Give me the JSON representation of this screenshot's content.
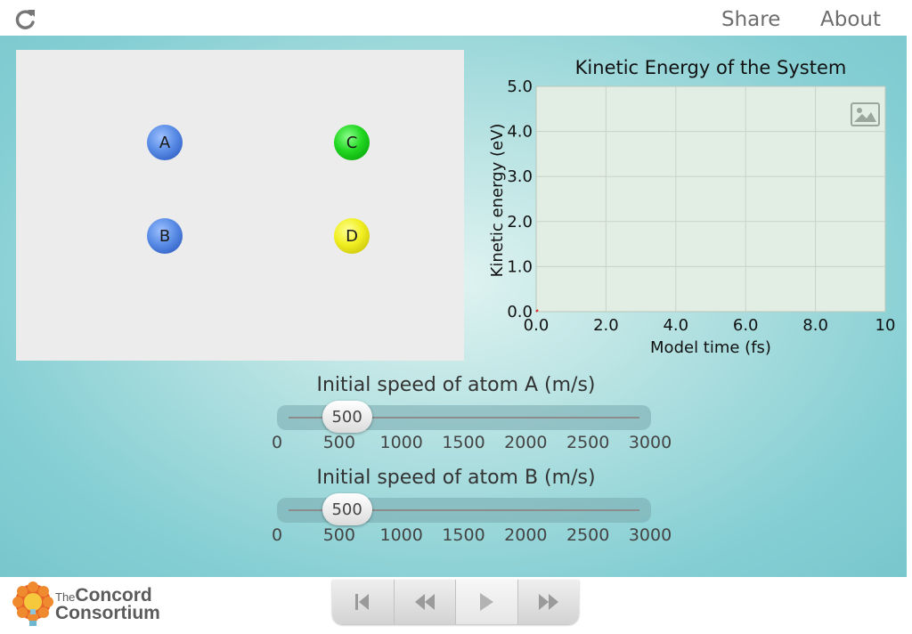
{
  "toolbar": {
    "share_label": "Share",
    "about_label": "About",
    "reload_icon": "reload-icon"
  },
  "model": {
    "atoms": [
      {
        "label": "A",
        "color": "#4a7fdc"
      },
      {
        "label": "B",
        "color": "#4a7fdc"
      },
      {
        "label": "C",
        "color": "#11cc11"
      },
      {
        "label": "D",
        "color": "#e6e21a"
      }
    ]
  },
  "graph": {
    "title": "Kinetic Energy of the System",
    "xlabel": "Model time (fs)",
    "ylabel": "Kinetic energy (eV)",
    "image_icon": "image-icon"
  },
  "chart_data": {
    "type": "line",
    "title": "Kinetic Energy of the System",
    "xlabel": "Model time (fs)",
    "ylabel": "Kinetic energy (eV)",
    "xlim": [
      0,
      10
    ],
    "ylim": [
      0,
      5
    ],
    "x_ticks": [
      "0.0",
      "2.0",
      "4.0",
      "6.0",
      "8.0",
      "10"
    ],
    "y_ticks": [
      "0.0",
      "1.0",
      "2.0",
      "3.0",
      "4.0",
      "5.0"
    ],
    "grid": true,
    "series": [
      {
        "x": [
          0
        ],
        "y": [
          0
        ]
      }
    ]
  },
  "slider_a": {
    "title": "Initial speed of atom A (m/s)",
    "value": 500,
    "min": 0,
    "max": 3000,
    "ticks": [
      "0",
      "500",
      "1000",
      "1500",
      "2000",
      "2500",
      "3000"
    ]
  },
  "slider_b": {
    "title": "Initial speed of atom B (m/s)",
    "value": 500,
    "min": 0,
    "max": 3000,
    "ticks": [
      "0",
      "500",
      "1000",
      "1500",
      "2000",
      "2500",
      "3000"
    ]
  },
  "footer": {
    "logo_the": "The",
    "logo_line1": "Concord",
    "logo_line2": "Consortium",
    "controls": [
      {
        "name": "reset-button",
        "icon": "skip-to-start-icon"
      },
      {
        "name": "step-back-button",
        "icon": "rewind-icon"
      },
      {
        "name": "play-button",
        "icon": "play-icon"
      },
      {
        "name": "step-forward-button",
        "icon": "fast-forward-icon"
      }
    ]
  }
}
